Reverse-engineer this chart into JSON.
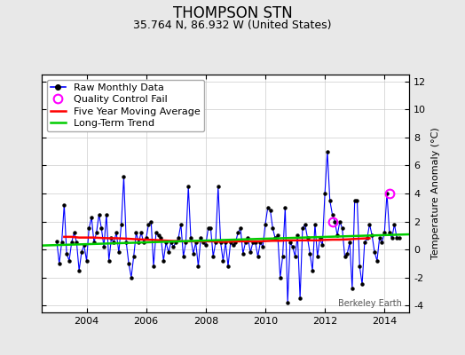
{
  "title": "THOMPSON STN",
  "subtitle": "35.764 N, 86.932 W (United States)",
  "ylabel": "Temperature Anomaly (°C)",
  "watermark": "Berkeley Earth",
  "xlim": [
    2002.5,
    2014.83
  ],
  "ylim": [
    -4.5,
    12.5
  ],
  "yticks": [
    -4,
    -2,
    0,
    2,
    4,
    6,
    8,
    10,
    12
  ],
  "background_color": "#e8e8e8",
  "plot_bg_color": "#ffffff",
  "raw_color": "#0000ff",
  "ma_color": "#ff0000",
  "trend_color": "#00cc00",
  "qc_color": "#ff00ff",
  "raw_data_x": [
    2003.0,
    2003.083,
    2003.167,
    2003.25,
    2003.333,
    2003.417,
    2003.5,
    2003.583,
    2003.667,
    2003.75,
    2003.833,
    2003.917,
    2004.0,
    2004.083,
    2004.167,
    2004.25,
    2004.333,
    2004.417,
    2004.5,
    2004.583,
    2004.667,
    2004.75,
    2004.833,
    2004.917,
    2005.0,
    2005.083,
    2005.167,
    2005.25,
    2005.333,
    2005.417,
    2005.5,
    2005.583,
    2005.667,
    2005.75,
    2005.833,
    2005.917,
    2006.0,
    2006.083,
    2006.167,
    2006.25,
    2006.333,
    2006.417,
    2006.5,
    2006.583,
    2006.667,
    2006.75,
    2006.833,
    2006.917,
    2007.0,
    2007.083,
    2007.167,
    2007.25,
    2007.333,
    2007.417,
    2007.5,
    2007.583,
    2007.667,
    2007.75,
    2007.833,
    2007.917,
    2008.0,
    2008.083,
    2008.167,
    2008.25,
    2008.333,
    2008.417,
    2008.5,
    2008.583,
    2008.667,
    2008.75,
    2008.833,
    2008.917,
    2009.0,
    2009.083,
    2009.167,
    2009.25,
    2009.333,
    2009.417,
    2009.5,
    2009.583,
    2009.667,
    2009.75,
    2009.833,
    2009.917,
    2010.0,
    2010.083,
    2010.167,
    2010.25,
    2010.333,
    2010.417,
    2010.5,
    2010.583,
    2010.667,
    2010.75,
    2010.833,
    2010.917,
    2011.0,
    2011.083,
    2011.167,
    2011.25,
    2011.333,
    2011.417,
    2011.5,
    2011.583,
    2011.667,
    2011.75,
    2011.833,
    2011.917,
    2012.0,
    2012.083,
    2012.167,
    2012.25,
    2012.333,
    2012.417,
    2012.5,
    2012.583,
    2012.667,
    2012.75,
    2012.833,
    2012.917,
    2013.0,
    2013.083,
    2013.167,
    2013.25,
    2013.333,
    2013.417,
    2013.5,
    2013.583,
    2013.667,
    2013.75,
    2013.833,
    2013.917,
    2014.0,
    2014.083,
    2014.167,
    2014.25,
    2014.333,
    2014.417,
    2014.5
  ],
  "raw_data_y": [
    0.6,
    -1.0,
    0.5,
    3.2,
    -0.3,
    -0.8,
    0.5,
    1.2,
    0.5,
    -1.5,
    -0.2,
    0.3,
    -0.8,
    1.5,
    2.3,
    0.5,
    1.2,
    2.5,
    1.5,
    0.2,
    2.5,
    -0.8,
    0.8,
    0.5,
    1.2,
    -0.2,
    1.8,
    5.2,
    0.5,
    -1.0,
    -2.0,
    -0.5,
    1.2,
    0.5,
    1.2,
    0.5,
    0.8,
    1.8,
    2.0,
    -1.2,
    1.2,
    1.0,
    0.8,
    -0.8,
    0.5,
    -0.2,
    0.5,
    0.2,
    0.5,
    0.8,
    1.8,
    -0.5,
    0.5,
    4.5,
    0.8,
    -0.3,
    0.5,
    -1.2,
    0.8,
    0.5,
    0.3,
    1.5,
    1.5,
    -0.5,
    0.5,
    4.5,
    0.5,
    -0.8,
    0.5,
    -1.2,
    0.5,
    0.3,
    0.5,
    1.2,
    1.5,
    -0.3,
    0.5,
    0.8,
    -0.2,
    0.5,
    0.5,
    -0.5,
    0.5,
    0.2,
    1.8,
    3.0,
    2.8,
    1.5,
    0.8,
    1.0,
    -2.0,
    -0.5,
    3.0,
    -3.8,
    0.5,
    0.2,
    -0.5,
    1.0,
    -3.5,
    1.5,
    1.8,
    0.8,
    -0.3,
    -1.5,
    1.8,
    -0.5,
    0.8,
    0.3,
    4.0,
    7.0,
    3.5,
    2.5,
    2.0,
    1.0,
    2.0,
    1.5,
    -0.5,
    -0.3,
    0.5,
    -2.8,
    3.5,
    3.5,
    -1.2,
    -2.5,
    0.5,
    0.8,
    1.8,
    1.0,
    -0.2,
    -0.8,
    0.8,
    0.5,
    1.2,
    4.0,
    1.2,
    0.8,
    1.8,
    0.8,
    0.8
  ],
  "ma_x": [
    2003.25,
    2003.5,
    2003.75,
    2004.0,
    2004.25,
    2004.5,
    2004.75,
    2005.0,
    2005.25,
    2005.5,
    2005.75,
    2006.0,
    2006.25,
    2006.5,
    2006.75,
    2007.0,
    2007.25,
    2007.5,
    2007.75,
    2008.0,
    2008.25,
    2008.5,
    2008.75,
    2009.0,
    2009.25,
    2009.5,
    2009.75,
    2010.0,
    2010.25,
    2010.5,
    2010.75,
    2011.0,
    2011.25,
    2011.5,
    2011.75,
    2012.0,
    2012.25,
    2012.5,
    2012.75,
    2013.0,
    2013.25,
    2013.5
  ],
  "ma_y": [
    0.9,
    0.9,
    0.85,
    0.85,
    0.85,
    0.82,
    0.8,
    0.8,
    0.78,
    0.75,
    0.72,
    0.7,
    0.68,
    0.65,
    0.62,
    0.6,
    0.58,
    0.58,
    0.58,
    0.58,
    0.58,
    0.55,
    0.55,
    0.58,
    0.58,
    0.58,
    0.58,
    0.6,
    0.62,
    0.62,
    0.65,
    0.65,
    0.65,
    0.65,
    0.65,
    0.68,
    0.7,
    0.7,
    0.72,
    0.75,
    0.78,
    0.8
  ],
  "trend_x": [
    2002.5,
    2014.83
  ],
  "trend_y": [
    0.28,
    1.08
  ],
  "qc_points_x": [
    2012.25,
    2014.167
  ],
  "qc_points_y": [
    2.0,
    4.0
  ],
  "xticks": [
    2004,
    2006,
    2008,
    2010,
    2012,
    2014
  ],
  "title_fontsize": 12,
  "subtitle_fontsize": 9,
  "label_fontsize": 8,
  "legend_fontsize": 8
}
